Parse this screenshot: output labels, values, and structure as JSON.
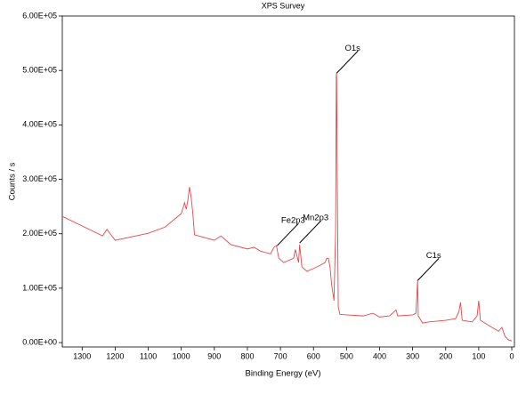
{
  "chart_data": {
    "type": "line",
    "title": "XPS Survey",
    "x_label": "Binding Energy (eV)",
    "y_label": "Counts / s",
    "x": [
      1360,
      1238,
      1225,
      1200,
      1100,
      1050,
      1000,
      990,
      985,
      980,
      975,
      970,
      965,
      960,
      900,
      880,
      850,
      800,
      780,
      760,
      730,
      720,
      712,
      705,
      690,
      660,
      655,
      645,
      642,
      635,
      620,
      600,
      580,
      565,
      560,
      555,
      550,
      545,
      538,
      533,
      531,
      530,
      528,
      525,
      520,
      500,
      450,
      420,
      400,
      370,
      350,
      345,
      300,
      290,
      285,
      283,
      270,
      250,
      200,
      170,
      160,
      155,
      150,
      120,
      105,
      100,
      95,
      60,
      40,
      30,
      20,
      10,
      0
    ],
    "series": [
      {
        "name": "Survey",
        "color": "#e8474a",
        "values": [
          232000,
          196000,
          208000,
          188000,
          201000,
          212000,
          237000,
          257000,
          245000,
          262000,
          286000,
          266000,
          237000,
          198000,
          188000,
          196000,
          180000,
          172000,
          175000,
          168000,
          163000,
          175000,
          178000,
          155000,
          147000,
          155000,
          171000,
          147000,
          180000,
          139000,
          131000,
          136000,
          142000,
          147000,
          155000,
          155000,
          139000,
          106000,
          77000,
          204000,
          490000,
          495000,
          302000,
          65000,
          52000,
          51000,
          49000,
          54000,
          47000,
          49000,
          60000,
          49000,
          51000,
          54000,
          114000,
          49000,
          36000,
          38000,
          41000,
          44000,
          57000,
          74000,
          41000,
          38000,
          49000,
          77000,
          41000,
          28000,
          21000,
          28000,
          11000,
          5000,
          3000
        ]
      }
    ],
    "xlim": [
      1360,
      -8
    ],
    "ylim": [
      -8000,
      600000
    ],
    "xticks": [
      1300,
      1200,
      1100,
      1000,
      900,
      800,
      700,
      600,
      500,
      400,
      300,
      200,
      100,
      0
    ],
    "yticks": [
      {
        "value": 0,
        "label": "0.00E+00"
      },
      {
        "value": 100000,
        "label": "1.00E+05"
      },
      {
        "value": 200000,
        "label": "2.00E+05"
      },
      {
        "value": 300000,
        "label": "3.00E+05"
      },
      {
        "value": 400000,
        "label": "4.00E+05"
      },
      {
        "value": 500000,
        "label": "5.00E+05"
      },
      {
        "value": 600000,
        "label": "6.00E+05"
      }
    ],
    "grid": false,
    "annotations": [
      {
        "text": "Fe2p3",
        "x": 710,
        "y": 178000
      },
      {
        "text": "Mn2p3",
        "x": 642,
        "y": 183000
      },
      {
        "text": "O1s",
        "x": 530,
        "y": 495000
      },
      {
        "text": "C1s",
        "x": 285,
        "y": 114000
      }
    ]
  }
}
